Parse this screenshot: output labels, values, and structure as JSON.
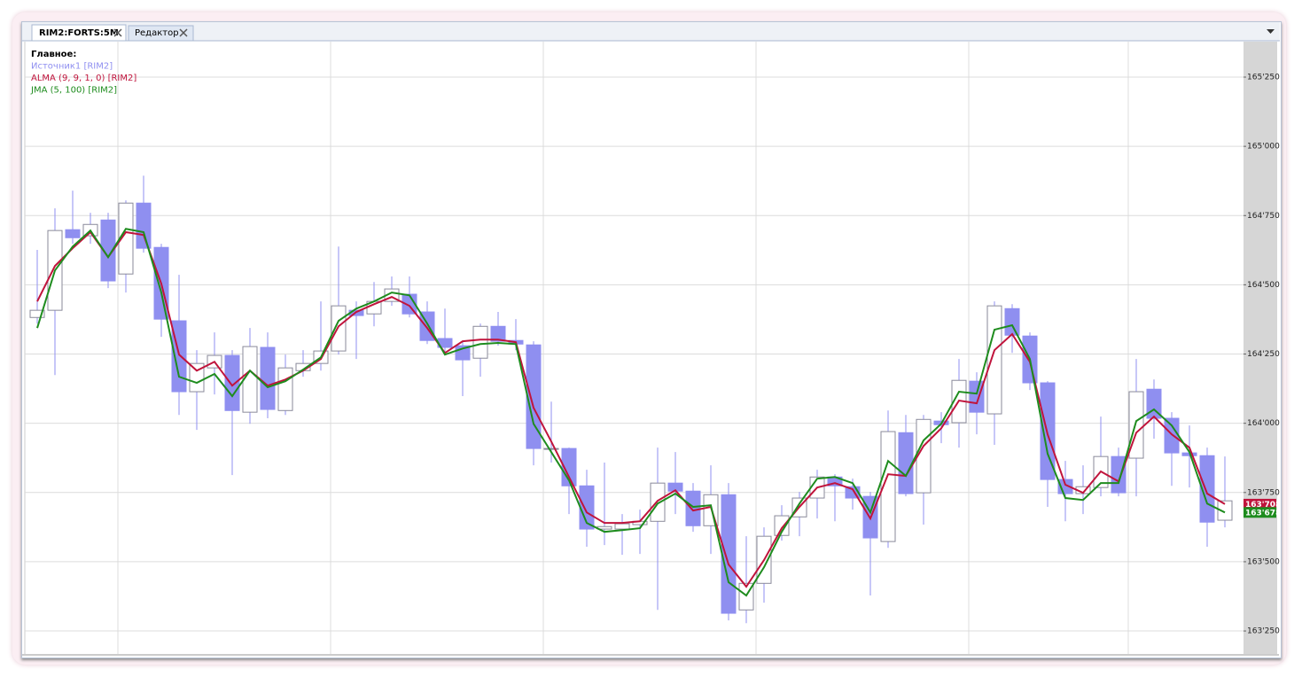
{
  "tabs": [
    "RIM2:FORTS:5M",
    "Редактор"
  ],
  "chart_data": {
    "type": "candlestick",
    "legend_title": "Главное:",
    "source": {
      "name": "Источник1 [RIM2]",
      "color": "#8f8ff0",
      "open": [
        164382,
        164408,
        164699,
        164677,
        164734,
        164539,
        164795,
        164635,
        164370,
        164114,
        164200,
        164245,
        164040,
        164274,
        164046,
        164190,
        164216,
        164261,
        164408,
        164395,
        164440,
        164466,
        164402,
        164306,
        164280,
        164235,
        164350,
        164299,
        164283,
        163906,
        163909,
        163774,
        163618,
        163618,
        163634,
        163646,
        163784,
        163755,
        163630,
        163742,
        163326,
        163422,
        163595,
        163662,
        163730,
        163806,
        163771,
        163736,
        163573,
        163966,
        163749,
        164008,
        164002,
        164152,
        164034,
        164414,
        164315,
        164146,
        163797,
        163746,
        163768,
        163880,
        163874,
        164123,
        164018,
        163893,
        163883,
        163650
      ],
      "high": [
        164626,
        164776,
        164840,
        164760,
        164760,
        164805,
        164894,
        164648,
        164536,
        164264,
        164328,
        164264,
        164344,
        164328,
        164248,
        164264,
        164440,
        164638,
        164440,
        164510,
        164530,
        164530,
        164440,
        164414,
        164296,
        164360,
        164402,
        164376,
        164296,
        164078,
        163912,
        163832,
        163858,
        163672,
        163688,
        163912,
        163896,
        163784,
        163848,
        163784,
        163592,
        163624,
        163704,
        163752,
        163832,
        163816,
        163800,
        163752,
        164046,
        164030,
        164030,
        164040,
        164232,
        164184,
        164440,
        164430,
        164328,
        164152,
        163864,
        163848,
        164024,
        163912,
        164232,
        164158,
        164040,
        163992,
        163912,
        163880
      ],
      "low": [
        164360,
        164174,
        164648,
        164648,
        164488,
        164472,
        164616,
        164312,
        164030,
        163976,
        164104,
        163813,
        163998,
        164018,
        164030,
        164168,
        164190,
        164248,
        164232,
        164350,
        164424,
        164382,
        164286,
        164254,
        164098,
        164168,
        164280,
        164264,
        163848,
        163858,
        163672,
        163554,
        163560,
        163525,
        163528,
        163326,
        163672,
        163608,
        163528,
        163288,
        163278,
        163352,
        163576,
        163592,
        163656,
        163646,
        163688,
        163378,
        163550,
        163736,
        163634,
        163928,
        163912,
        163960,
        163922,
        164254,
        164120,
        163698,
        163646,
        163672,
        163736,
        163736,
        163736,
        163944,
        163774,
        163768,
        163554,
        163624
      ],
      "close": [
        164408,
        164696,
        164670,
        164718,
        164514,
        164795,
        164632,
        164376,
        164114,
        164216,
        164245,
        164046,
        164277,
        164050,
        164200,
        164216,
        164261,
        164424,
        164389,
        164440,
        164485,
        164395,
        164299,
        164274,
        164229,
        164350,
        164296,
        164286,
        163909,
        163909,
        163774,
        163618,
        163627,
        163637,
        163646,
        163784,
        163755,
        163630,
        163742,
        163314,
        163422,
        163592,
        163666,
        163730,
        163806,
        163774,
        163730,
        163586,
        163970,
        163746,
        164014,
        163995,
        164155,
        164040,
        164424,
        164318,
        164146,
        163797,
        163746,
        163771,
        163880,
        163749,
        164114,
        164018,
        163893,
        163883,
        163643,
        163720
      ]
    },
    "series": [
      {
        "name": "ALMA (9, 9, 1, 0) [RIM2]",
        "color": "#c0143c",
        "last_label": "163'708",
        "values": [
          164440,
          164568,
          164632,
          164690,
          164600,
          164690,
          164680,
          164504,
          164248,
          164190,
          164222,
          164136,
          164190,
          164136,
          164158,
          164190,
          164232,
          164350,
          164402,
          164430,
          164456,
          164424,
          164344,
          164254,
          164296,
          164302,
          164302,
          164293,
          164056,
          163934,
          163806,
          163678,
          163640,
          163640,
          163646,
          163720,
          163758,
          163685,
          163698,
          163490,
          163410,
          163506,
          163621,
          163698,
          163768,
          163784,
          163762,
          163656,
          163816,
          163810,
          163918,
          163982,
          164082,
          164072,
          164264,
          164322,
          164222,
          163960,
          163778,
          163749,
          163826,
          163790,
          163966,
          164024,
          163960,
          163912,
          163746,
          163708
        ]
      },
      {
        "name": "JMA (5, 100) [RIM2]",
        "color": "#1e8c1e",
        "last_label": "163'678",
        "values": [
          164344,
          164552,
          164638,
          164696,
          164600,
          164702,
          164690,
          164472,
          164168,
          164146,
          164178,
          164098,
          164190,
          164130,
          164152,
          164194,
          164238,
          164370,
          164414,
          164440,
          164472,
          164462,
          164360,
          164248,
          164270,
          164286,
          164290,
          164286,
          163998,
          163896,
          163794,
          163640,
          163608,
          163614,
          163621,
          163710,
          163746,
          163698,
          163704,
          163426,
          163378,
          163480,
          163608,
          163710,
          163800,
          163806,
          163784,
          163678,
          163864,
          163810,
          163938,
          163998,
          164114,
          164107,
          164338,
          164354,
          164232,
          163890,
          163730,
          163723,
          163784,
          163784,
          164008,
          164050,
          163992,
          163896,
          163710,
          163678
        ]
      }
    ],
    "ylim": [
      163167,
      165378
    ],
    "yticks": [
      {
        "value": 163250,
        "label": "163'250"
      },
      {
        "value": 163500,
        "label": "163'500"
      },
      {
        "value": 163750,
        "label": "163'750"
      },
      {
        "value": 164000,
        "label": "164'000"
      },
      {
        "value": 164250,
        "label": "164'250"
      },
      {
        "value": 164500,
        "label": "164'500"
      },
      {
        "value": 164750,
        "label": "164'750"
      },
      {
        "value": 165000,
        "label": "165'000"
      },
      {
        "value": 165250,
        "label": "165'250"
      }
    ],
    "grid": true
  }
}
